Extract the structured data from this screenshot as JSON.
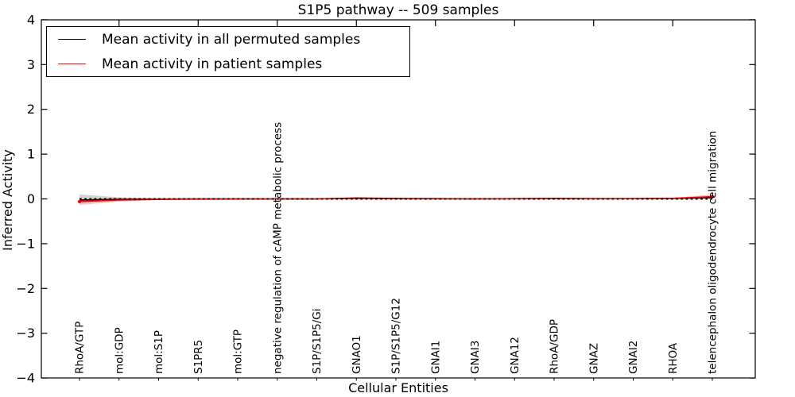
{
  "chart_data": {
    "type": "line",
    "title": "S1P5 pathway -- 509 samples",
    "xlabel": "Cellular Entities",
    "ylabel": "Inferred Activity",
    "ylim": [
      -4,
      4
    ],
    "grid": false,
    "legend_position": "upper left",
    "categories": [
      "RhoA/GTP",
      "mol:GDP",
      "mol:S1P",
      "S1PR5",
      "mol:GTP",
      "negative regulation of cAMP metabolic process",
      "S1P/S1P5/Gi",
      "GNAO1",
      "S1P/S1P5/G12",
      "GNAI1",
      "GNAI3",
      "GNA12",
      "RhoA/GDP",
      "GNAZ",
      "GNAI2",
      "RHOA",
      "telencephalon oligodendrocyte cell migration"
    ],
    "yticks": {
      "values": [
        4,
        3,
        2,
        1,
        0,
        -1,
        -2,
        -3,
        -4
      ],
      "labels": [
        "4",
        "3",
        "2",
        "1",
        "0",
        "−1",
        "−2",
        "−3",
        "−4"
      ]
    },
    "series": [
      {
        "name": "Mean activity in all permuted samples",
        "color": "#000000",
        "band_color": "#aaaaaa",
        "values": [
          -0.025,
          -0.01,
          -0.005,
          0,
          0,
          0,
          0,
          0.02,
          0.01,
          0.005,
          0,
          0.005,
          0.01,
          0.005,
          0.005,
          0.01,
          0.025
        ],
        "band_upper": [
          0.1,
          0.035,
          0.015,
          0.01,
          0.01,
          0.01,
          0.012,
          0.035,
          0.02,
          0.012,
          0.012,
          0.012,
          0.015,
          0.012,
          0.012,
          0.02,
          0.05
        ],
        "band_lower": [
          -0.1,
          -0.05,
          -0.02,
          -0.01,
          -0.01,
          -0.01,
          -0.012,
          -0.005,
          -0.005,
          -0.008,
          -0.01,
          -0.008,
          -0.005,
          -0.008,
          -0.005,
          -0.005,
          0
        ]
      },
      {
        "name": "Mean activity in patient samples",
        "color": "#ff0000",
        "band_color": "#ff9090",
        "values": [
          -0.06,
          -0.025,
          -0.01,
          -0.005,
          -0.003,
          0,
          0,
          0.008,
          0.003,
          0,
          0.003,
          0.003,
          0.005,
          0.003,
          0.005,
          0.012,
          0.05
        ],
        "band_upper": [
          0.005,
          0.005,
          0.005,
          0.005,
          0.005,
          0.006,
          0.008,
          0.02,
          0.01,
          0.006,
          0.008,
          0.008,
          0.01,
          0.008,
          0.01,
          0.025,
          0.095
        ],
        "band_lower": [
          -0.135,
          -0.06,
          -0.025,
          -0.012,
          -0.01,
          -0.008,
          -0.008,
          -0.002,
          -0.004,
          -0.006,
          -0.005,
          -0.005,
          -0.004,
          -0.005,
          -0.004,
          -0.002,
          0.01
        ]
      }
    ],
    "zero_line": {
      "style": "dotted",
      "color": "#000000",
      "y": 0
    }
  }
}
